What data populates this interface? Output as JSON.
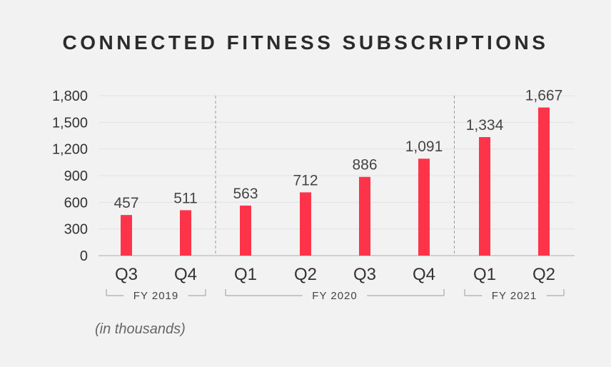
{
  "colors": {
    "bar": "#fd3449",
    "background": "#f2f2f3",
    "grid": "#e2e2e4",
    "axis": "#c4c4c6",
    "divider": "#9a9a9c",
    "text": "#333333"
  },
  "chart_data": {
    "type": "bar",
    "title": "CONNECTED FITNESS SUBSCRIPTIONS",
    "unit_note": "(in thousands)",
    "categories": [
      "Q3",
      "Q4",
      "Q1",
      "Q2",
      "Q3",
      "Q4",
      "Q1",
      "Q2"
    ],
    "values": [
      457,
      511,
      563,
      712,
      886,
      1091,
      1334,
      1667
    ],
    "value_labels": [
      "457",
      "511",
      "563",
      "712",
      "886",
      "1,091",
      "1,334",
      "1,667"
    ],
    "groups": [
      {
        "label": "FY 2019",
        "start": 0,
        "end": 1
      },
      {
        "label": "FY 2020",
        "start": 2,
        "end": 5
      },
      {
        "label": "FY 2021",
        "start": 6,
        "end": 7
      }
    ],
    "ylim": [
      0,
      1800
    ],
    "yticks": [
      0,
      300,
      600,
      900,
      1200,
      1500,
      1800
    ],
    "ytick_labels": [
      "0",
      "300",
      "600",
      "900",
      "1,200",
      "1,500",
      "1,800"
    ],
    "grid": true,
    "legend": "none"
  }
}
